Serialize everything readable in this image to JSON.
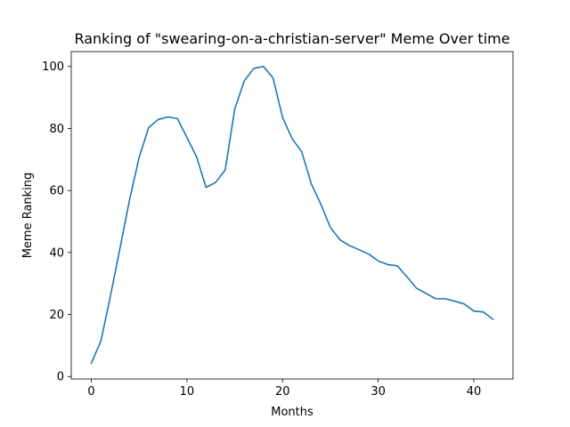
{
  "chart_data": {
    "type": "line",
    "title": "Ranking of \"swearing-on-a-christian-server\" Meme Over time",
    "xlabel": "Months",
    "ylabel": "Meme Ranking",
    "xlim": [
      -2.1,
      44.1
    ],
    "ylim": [
      -0.8,
      104.8
    ],
    "xticks": [
      0,
      10,
      20,
      30,
      40
    ],
    "yticks": [
      0,
      20,
      40,
      60,
      80,
      100
    ],
    "grid": false,
    "series": [
      {
        "color": "#1f77b4",
        "x": [
          0,
          1,
          2,
          3,
          4,
          5,
          6,
          7,
          8,
          9,
          10,
          11,
          12,
          13,
          14,
          15,
          16,
          17,
          18,
          19,
          20,
          21,
          22,
          23,
          24,
          25,
          26,
          27,
          28,
          29,
          30,
          31,
          32,
          33,
          34,
          35,
          36,
          37,
          38,
          39,
          40,
          41,
          42
        ],
        "y": [
          4.3,
          11.4,
          26,
          41.4,
          57,
          70.7,
          80.3,
          82.9,
          83.7,
          83.2,
          77.1,
          70.9,
          61,
          62.6,
          66.6,
          86.3,
          95.4,
          99.4,
          100,
          96.3,
          83.6,
          76.7,
          72.5,
          62.2,
          55.6,
          48.1,
          44.1,
          42.2,
          40.9,
          39.5,
          37.3,
          36.1,
          35.7,
          32.2,
          28.5,
          26.8,
          25.1,
          25.1,
          24.3,
          23.4,
          21.1,
          20.8,
          18.5
        ]
      }
    ]
  }
}
